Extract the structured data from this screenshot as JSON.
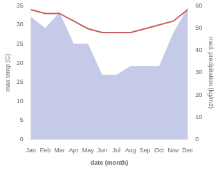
{
  "chart_data": {
    "type": "line",
    "xlabel": "date (month)",
    "ylabel": "max temp (C)",
    "y2label": "med. precipitation (kg/m2)",
    "categories": [
      "Jan",
      "Feb",
      "Mar",
      "Apr",
      "May",
      "Jun",
      "Jul",
      "Aug",
      "Sep",
      "Oct",
      "Nov",
      "Dec"
    ],
    "series": [
      {
        "type": "area",
        "axis": "y2",
        "color": "#c5cae9",
        "values": [
          55,
          50,
          57,
          43,
          43,
          29,
          29,
          33,
          33,
          33,
          48,
          59
        ]
      },
      {
        "type": "line",
        "color": "#cd5c5c",
        "values": [
          34,
          33,
          33,
          31,
          29,
          28,
          28,
          28,
          29,
          30,
          31,
          34
        ]
      }
    ],
    "ylim": [
      0,
      35
    ],
    "yticks": [
      0,
      5,
      10,
      15,
      20,
      25,
      30,
      35
    ],
    "y2lim": [
      0,
      60
    ],
    "y2ticks": [
      0,
      10,
      20,
      30,
      40,
      50,
      60
    ],
    "grid": false
  }
}
